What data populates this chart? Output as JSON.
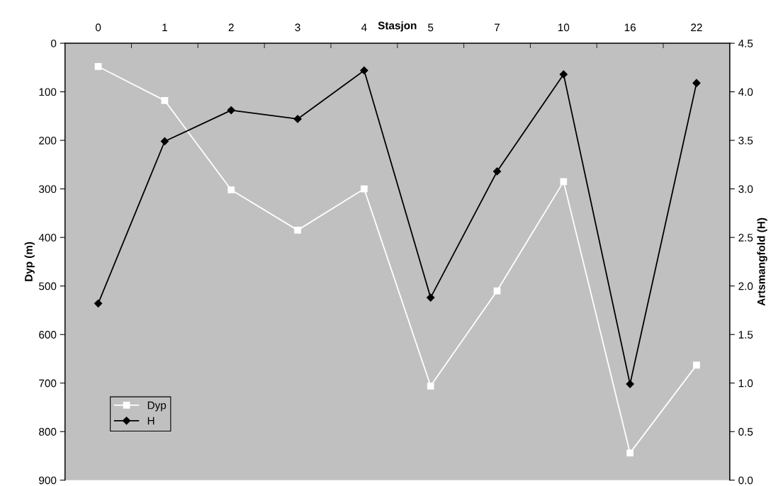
{
  "chart_data": {
    "type": "line",
    "xlabel": "Stasjon",
    "ylabel": "Dyp (m)",
    "y2label": "Artsmangfold (H)",
    "categories": [
      "0",
      "1",
      "2",
      "3",
      "4",
      "5",
      "7",
      "10",
      "16",
      "22"
    ],
    "series": [
      {
        "name": "Dyp",
        "color": "#ffffff",
        "marker": "square",
        "values": [
          48,
          118,
          302,
          385,
          300,
          706,
          510,
          285,
          844,
          663
        ]
      },
      {
        "name": "H",
        "color": "#000000",
        "marker": "diamond",
        "axis": "y2",
        "values": [
          1.82,
          3.49,
          3.81,
          3.72,
          4.22,
          1.88,
          3.18,
          4.18,
          0.99,
          4.09
        ]
      }
    ],
    "ylim": [
      900,
      0
    ],
    "yticks": [
      0,
      100,
      200,
      300,
      400,
      500,
      600,
      700,
      800,
      900
    ],
    "y2lim": [
      0,
      4.5
    ],
    "y2ticks": [
      {
        "value": 0,
        "label": "0.0"
      },
      {
        "value": 0.5,
        "label": "0.5"
      },
      {
        "value": 1,
        "label": "1.0"
      },
      {
        "value": 1.5,
        "label": "1.5"
      },
      {
        "value": 2,
        "label": "2.0"
      },
      {
        "value": 2.5,
        "label": "2.5"
      },
      {
        "value": 3,
        "label": "3.0"
      },
      {
        "value": 3.5,
        "label": "3.5"
      },
      {
        "value": 4,
        "label": "4.0"
      },
      {
        "value": 4.5,
        "label": "4.5"
      }
    ],
    "grid": false,
    "legend": "lower left",
    "line_style": "solid"
  }
}
